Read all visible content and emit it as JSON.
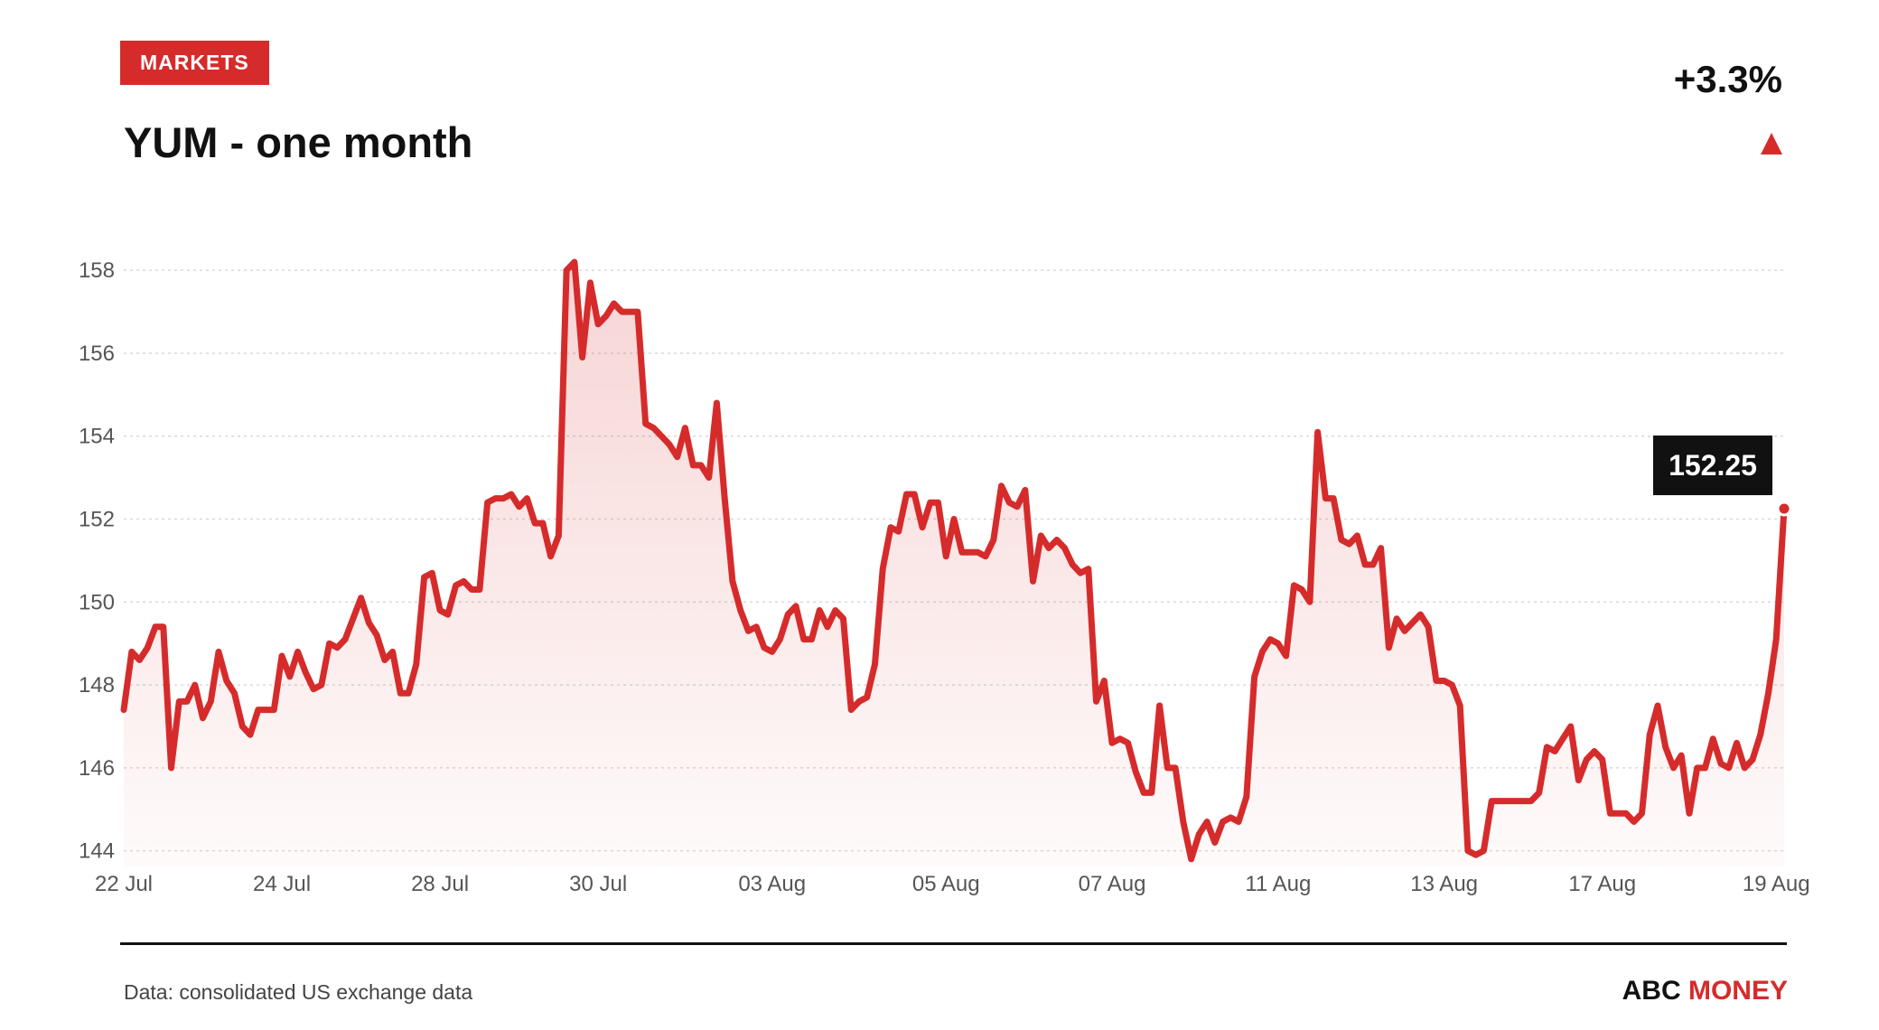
{
  "header": {
    "tag": "MARKETS",
    "title": "YUM - one month",
    "change": "+3.3%"
  },
  "footer": {
    "source": "Data: consolidated US exchange data",
    "brand_part1": "ABC",
    "brand_part2": "MONEY"
  },
  "colors": {
    "accent": "#d62b2b",
    "text": "#111111",
    "label_bg": "#111111"
  },
  "chart_data": {
    "type": "line",
    "title": "YUM - one month",
    "xlabel": "",
    "ylabel": "",
    "ylim": [
      143.6,
      158.2
    ],
    "yticks": [
      144,
      146,
      148,
      150,
      152,
      154,
      156,
      158
    ],
    "ytick_labels": [
      "144",
      "146",
      "148",
      "150",
      "152",
      "154",
      "156",
      "158"
    ],
    "xtick_labels": [
      "22 Jul",
      "24 Jul",
      "28 Jul",
      "30 Jul",
      "03 Aug",
      "05 Aug",
      "07 Aug",
      "11 Aug",
      "13 Aug",
      "17 Aug",
      "19 Aug"
    ],
    "xtick_index": [
      0,
      20,
      40,
      60,
      82,
      104,
      125,
      146,
      167,
      187,
      209
    ],
    "grid": true,
    "last_value": 152.25,
    "last_label": "152.25",
    "values": [
      147.4,
      148.8,
      148.6,
      148.9,
      149.4,
      149.4,
      146.0,
      147.6,
      147.6,
      148.0,
      147.2,
      147.6,
      148.8,
      148.1,
      147.8,
      147.0,
      146.8,
      147.4,
      147.4,
      147.4,
      148.7,
      148.2,
      148.8,
      148.3,
      147.9,
      148.0,
      149.0,
      148.9,
      149.1,
      149.6,
      150.1,
      149.5,
      149.2,
      148.6,
      148.8,
      147.8,
      147.8,
      148.5,
      150.6,
      150.7,
      149.8,
      149.7,
      150.4,
      150.5,
      150.3,
      150.3,
      152.4,
      152.5,
      152.5,
      152.6,
      152.3,
      152.5,
      151.9,
      151.9,
      151.1,
      151.6,
      158.0,
      158.2,
      155.9,
      157.7,
      156.7,
      156.9,
      157.2,
      157.0,
      157.0,
      157.0,
      154.3,
      154.2,
      154.0,
      153.8,
      153.5,
      154.2,
      153.3,
      153.3,
      153.0,
      154.8,
      152.5,
      150.5,
      149.8,
      149.3,
      149.4,
      148.9,
      148.8,
      149.1,
      149.7,
      149.9,
      149.1,
      149.1,
      149.8,
      149.4,
      149.8,
      149.6,
      147.4,
      147.6,
      147.7,
      148.5,
      150.8,
      151.8,
      151.7,
      152.6,
      152.6,
      151.8,
      152.4,
      152.4,
      151.1,
      152.0,
      151.2,
      151.2,
      151.2,
      151.1,
      151.5,
      152.8,
      152.4,
      152.3,
      152.7,
      150.5,
      151.6,
      151.3,
      151.5,
      151.3,
      150.9,
      150.7,
      150.8,
      147.6,
      148.1,
      146.6,
      146.7,
      146.6,
      145.9,
      145.4,
      145.4,
      147.5,
      146.0,
      146.0,
      144.7,
      143.8,
      144.4,
      144.7,
      144.2,
      144.7,
      144.8,
      144.7,
      145.3,
      148.2,
      148.8,
      149.1,
      149.0,
      148.7,
      150.4,
      150.3,
      150.0,
      154.1,
      152.5,
      152.5,
      151.5,
      151.4,
      151.6,
      150.9,
      150.9,
      151.3,
      148.9,
      149.6,
      149.3,
      149.5,
      149.7,
      149.4,
      148.1,
      148.1,
      148.0,
      147.5,
      144.0,
      143.9,
      144.0,
      145.2,
      145.2,
      145.2,
      145.2,
      145.2,
      145.2,
      145.4,
      146.5,
      146.4,
      146.7,
      147.0,
      145.7,
      146.2,
      146.4,
      146.2,
      144.9,
      144.9,
      144.9,
      144.7,
      144.9,
      146.8,
      147.5,
      146.5,
      146.0,
      146.3,
      144.9,
      146.0,
      146.0,
      146.7,
      146.1,
      146.0,
      146.6,
      146.0,
      146.2,
      146.8,
      147.8,
      149.1,
      152.25
    ],
    "series": [
      {
        "name": "YUM"
      }
    ]
  }
}
